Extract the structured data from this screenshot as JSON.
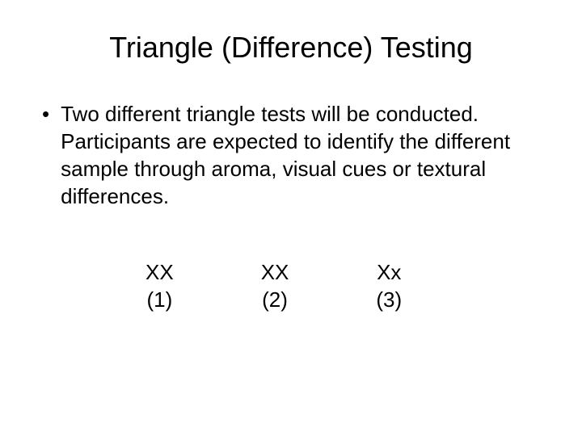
{
  "title": "Triangle (Difference) Testing",
  "bullet": {
    "marker": "•",
    "text": "Two different triangle tests will be conducted.  Participants are expected to identify the different sample through aroma, visual cues or textural differences."
  },
  "samples": [
    {
      "label": "XX",
      "num": "(1)"
    },
    {
      "label": "XX",
      "num": "(2)"
    },
    {
      "label": "Xx",
      "num": "(3)"
    }
  ],
  "colors": {
    "background": "#ffffff",
    "text": "#000000"
  },
  "fonts": {
    "family": "Arial",
    "title_size": 36,
    "body_size": 26
  }
}
